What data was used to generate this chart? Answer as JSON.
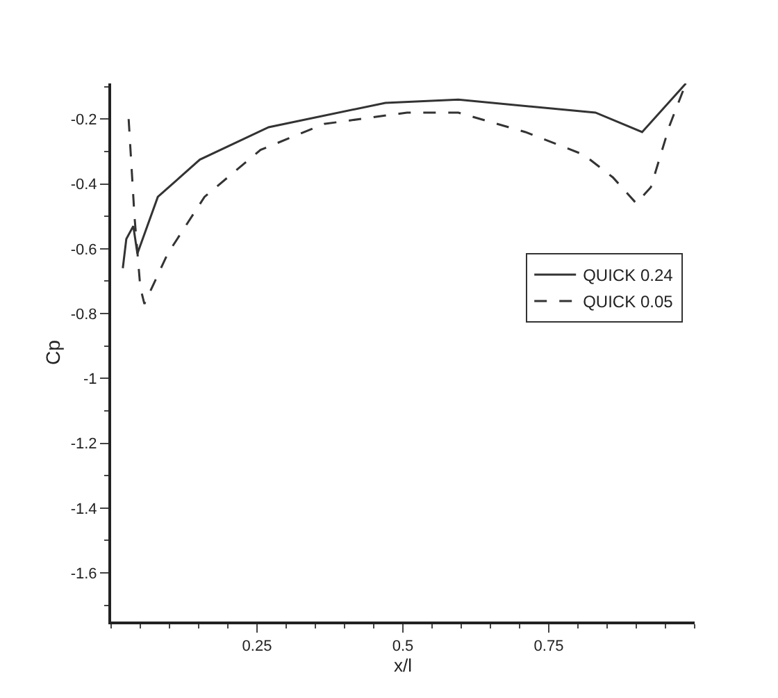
{
  "chart_data": {
    "type": "line",
    "xlabel": "x/l",
    "ylabel": "Cp",
    "xlim": [
      0,
      1
    ],
    "ylim": [
      -1.75,
      -0.09
    ],
    "xticks": [
      0.25,
      0.5,
      0.75
    ],
    "yticks": [
      -0.2,
      -0.4,
      -0.6,
      -0.8,
      -1,
      -1.2,
      -1.4,
      -1.6
    ],
    "legend": "right",
    "marker": "none",
    "series": [
      {
        "name": "QUICK 0.24",
        "color": "#333333",
        "line_style": "solid",
        "x": [
          0.02,
          0.026,
          0.038,
          0.045,
          0.08,
          0.152,
          0.27,
          0.47,
          0.595,
          0.83,
          0.91,
          0.985
        ],
        "values": [
          -0.66,
          -0.57,
          -0.53,
          -0.615,
          -0.44,
          -0.325,
          -0.225,
          -0.15,
          -0.14,
          -0.18,
          -0.24,
          -0.09
        ]
      },
      {
        "name": "QUICK 0.05",
        "color": "#333333",
        "line_style": "dashed",
        "x": [
          0.03,
          0.04,
          0.05,
          0.057,
          0.097,
          0.16,
          0.256,
          0.365,
          0.507,
          0.595,
          0.71,
          0.81,
          0.86,
          0.9,
          0.925,
          0.957,
          0.985
        ],
        "values": [
          -0.2,
          -0.5,
          -0.72,
          -0.77,
          -0.615,
          -0.44,
          -0.295,
          -0.215,
          -0.18,
          -0.18,
          -0.24,
          -0.31,
          -0.38,
          -0.46,
          -0.41,
          -0.22,
          -0.09
        ]
      }
    ]
  }
}
